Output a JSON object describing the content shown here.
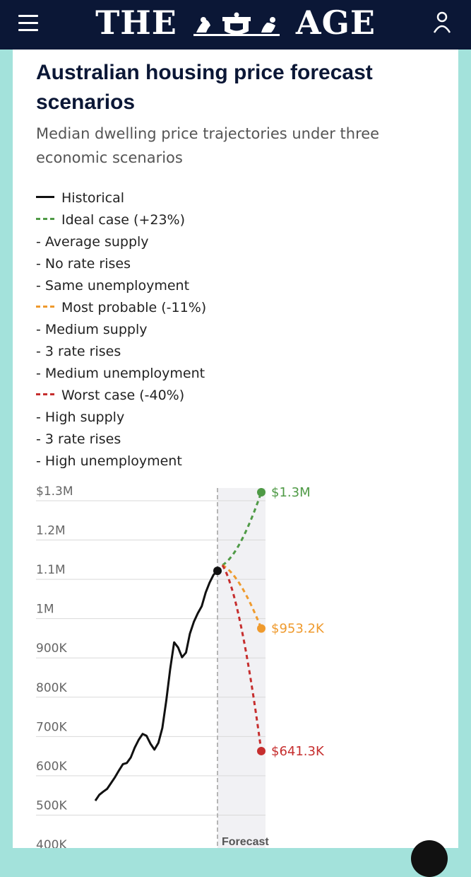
{
  "header": {
    "masthead_left": "THE",
    "masthead_right": "AGE",
    "menu_icon": "hamburger-menu-icon",
    "crest_icon": "coat-of-arms-icon",
    "account_icon": "user-account-icon",
    "bg_color": "#0b1736"
  },
  "page": {
    "background_color": "#a3e2db"
  },
  "chart_data": {
    "type": "line",
    "title": "Australian housing price forecast scenarios",
    "subtitle": "Median dwelling price trajectories under three economic scenarios",
    "legend": [
      {
        "label": "Historical",
        "style": "solid",
        "color": "#111111"
      },
      {
        "label": "Ideal case (+23%)",
        "style": "dashed",
        "color": "#4f9a46"
      },
      {
        "label": "- Average supply"
      },
      {
        "label": "- No rate rises"
      },
      {
        "label": "- Same unemployment"
      },
      {
        "label": "Most probable (-11%)",
        "style": "dashed",
        "color": "#ef9a2d"
      },
      {
        "label": "- Medium supply"
      },
      {
        "label": "- 3 rate rises"
      },
      {
        "label": "- Medium unemployment"
      },
      {
        "label": "Worst case (-40%)",
        "style": "dashed",
        "color": "#c62e2e"
      },
      {
        "label": "- High supply"
      },
      {
        "label": "- 3 rate rises"
      },
      {
        "label": "- High unemployment"
      }
    ],
    "y_ticks": [
      {
        "value": 1300000,
        "label": "$1.3M"
      },
      {
        "value": 1200000,
        "label": "1.2M"
      },
      {
        "value": 1100000,
        "label": "1.1M"
      },
      {
        "value": 1000000,
        "label": "1M"
      },
      {
        "value": 900000,
        "label": "900K"
      },
      {
        "value": 800000,
        "label": "800K"
      },
      {
        "value": 700000,
        "label": "700K"
      },
      {
        "value": 600000,
        "label": "600K"
      },
      {
        "value": 500000,
        "label": "500K"
      },
      {
        "value": 400000,
        "label": "400K"
      }
    ],
    "ylim": [
      400000,
      1300000
    ],
    "forecast_label": "Forecast",
    "series": [
      {
        "name": "Historical",
        "color": "#111111",
        "style": "solid",
        "values": [
          515000,
          530000,
          538000,
          545000,
          560000,
          575000,
          592000,
          608000,
          611000,
          625000,
          650000,
          670000,
          685000,
          680000,
          660000,
          645000,
          662000,
          700000,
          770000,
          850000,
          918000,
          905000,
          880000,
          892000,
          940000,
          970000,
          992000,
          1010000,
          1045000,
          1070000,
          1090000,
          1100000
        ]
      },
      {
        "name": "Ideal case (+23%)",
        "color": "#4f9a46",
        "style": "dashed",
        "values": [
          1100000,
          1300000
        ],
        "end_label": "$1.3M"
      },
      {
        "name": "Most probable (-11%)",
        "color": "#ef9a2d",
        "style": "dashed",
        "values": [
          1100000,
          953200
        ],
        "end_label": "$953.2K"
      },
      {
        "name": "Worst case (-40%)",
        "color": "#c62e2e",
        "style": "dashed",
        "values": [
          1100000,
          641300
        ],
        "end_label": "$641.3K"
      }
    ],
    "grid": true
  }
}
